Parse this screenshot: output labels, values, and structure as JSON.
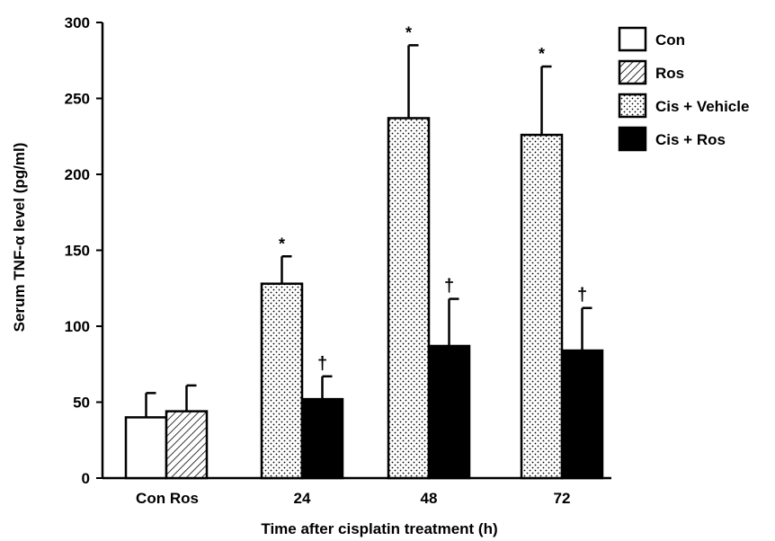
{
  "chart_data": {
    "type": "bar",
    "xlabel": "Time after cisplatin treatment (h)",
    "ylabel": "Serum TNF-α level (pg/ml)",
    "ylim": [
      0,
      300
    ],
    "yticks": [
      "0",
      "50",
      "100",
      "150",
      "200",
      "250",
      "300"
    ],
    "groups": [
      {
        "label": "Con Ros",
        "bars": [
          {
            "series": "Con",
            "value": 40,
            "error": 16,
            "mark": ""
          },
          {
            "series": "Ros",
            "value": 44,
            "error": 17,
            "mark": ""
          }
        ]
      },
      {
        "label": "24",
        "bars": [
          {
            "series": "Cis + Vehicle",
            "value": 128,
            "error": 18,
            "mark": "*"
          },
          {
            "series": "Cis + Ros",
            "value": 52,
            "error": 15,
            "mark": "†"
          }
        ]
      },
      {
        "label": "48",
        "bars": [
          {
            "series": "Cis + Vehicle",
            "value": 237,
            "error": 48,
            "mark": "*"
          },
          {
            "series": "Cis + Ros",
            "value": 87,
            "error": 31,
            "mark": "†"
          }
        ]
      },
      {
        "label": "72",
        "bars": [
          {
            "series": "Cis + Vehicle",
            "value": 226,
            "error": 45,
            "mark": "*"
          },
          {
            "series": "Cis + Ros",
            "value": 84,
            "error": 28,
            "mark": "†"
          }
        ]
      }
    ],
    "legend": [
      {
        "name": "Con",
        "fill": "open"
      },
      {
        "name": "Ros",
        "fill": "hatched"
      },
      {
        "name": "Cis + Vehicle",
        "fill": "dotted"
      },
      {
        "name": "Cis + Ros",
        "fill": "solid"
      }
    ],
    "legend_position": "top-right",
    "grid": false,
    "colors": {
      "ink": "#000000",
      "background": "#ffffff",
      "dot": "#000000"
    }
  }
}
